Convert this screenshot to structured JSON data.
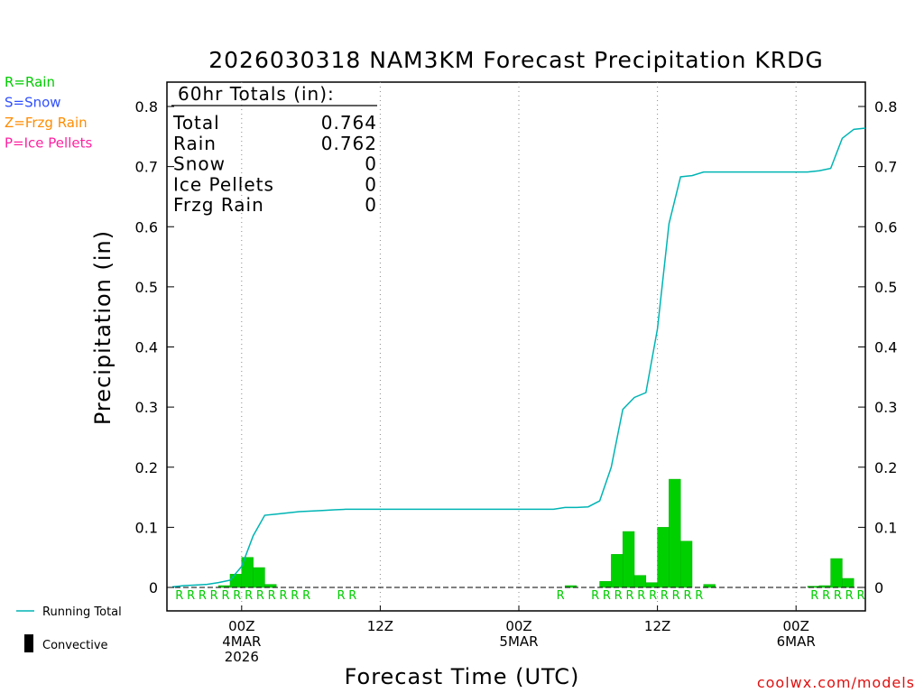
{
  "chart_data": {
    "type": "bar",
    "title": "2026030318 NAM3KM Forecast Precipitation KRDG",
    "xlabel": "Forecast Time (UTC)",
    "ylabel": "Precipitation (in)",
    "ylim": [
      -0.04,
      0.85
    ],
    "yticks": [
      "0",
      "0.1",
      "0.2",
      "0.3",
      "0.4",
      "0.5",
      "0.6",
      "0.7",
      "0.8"
    ],
    "xticks": [
      {
        "hour": 6,
        "lines": [
          "00Z",
          "4MAR",
          "2026"
        ]
      },
      {
        "hour": 18,
        "lines": [
          "12Z"
        ]
      },
      {
        "hour": 30,
        "lines": [
          "00Z",
          "5MAR"
        ]
      },
      {
        "hour": 42,
        "lines": [
          "12Z"
        ]
      },
      {
        "hour": 54,
        "lines": [
          "00Z",
          "6MAR"
        ]
      }
    ],
    "xlim": [
      0,
      60
    ],
    "grid": "vertical dotted at 00Z and 12Z",
    "legend_colors": {
      "rain": "#00cc00",
      "snow": "#3050ff",
      "frzg": "#ff8c00",
      "ice": "#ff20a0",
      "running": "#00b4b4"
    },
    "hourly_precip": [
      0,
      0,
      0,
      0,
      0.003,
      0.022,
      0.05,
      0.033,
      0.005,
      0,
      0,
      0,
      0,
      0,
      0,
      0,
      0,
      0,
      0,
      0,
      0,
      0,
      0,
      0,
      0,
      0,
      0,
      0,
      0,
      0,
      0,
      0,
      0,
      0,
      0.003,
      0,
      0,
      0.01,
      0.055,
      0.093,
      0.02,
      0.008,
      0.1,
      0.18,
      0.077,
      0,
      0.005,
      0,
      0,
      0,
      0,
      0,
      0,
      0,
      0,
      0.002,
      0.003,
      0.048,
      0.015,
      0
    ],
    "running_total": [
      0.001,
      0.003,
      0.004,
      0.005,
      0.008,
      0.012,
      0.035,
      0.086,
      0.12,
      0.122,
      0.124,
      0.126,
      0.127,
      0.128,
      0.129,
      0.13,
      0.13,
      0.13,
      0.13,
      0.13,
      0.13,
      0.13,
      0.13,
      0.13,
      0.13,
      0.13,
      0.13,
      0.13,
      0.13,
      0.13,
      0.13,
      0.13,
      0.13,
      0.13,
      0.133,
      0.133,
      0.134,
      0.144,
      0.2,
      0.296,
      0.316,
      0.324,
      0.43,
      0.605,
      0.683,
      0.685,
      0.691,
      0.691,
      0.691,
      0.691,
      0.691,
      0.691,
      0.691,
      0.691,
      0.691,
      0.691,
      0.693,
      0.697,
      0.747,
      0.762,
      0.764
    ],
    "ptype_markers": [
      {
        "hour": 1,
        "type": "R"
      },
      {
        "hour": 2,
        "type": "R"
      },
      {
        "hour": 3,
        "type": "R"
      },
      {
        "hour": 4,
        "type": "R"
      },
      {
        "hour": 5,
        "type": "R"
      },
      {
        "hour": 6,
        "type": "R"
      },
      {
        "hour": 7,
        "type": "R"
      },
      {
        "hour": 8,
        "type": "R"
      },
      {
        "hour": 9,
        "type": "R"
      },
      {
        "hour": 10,
        "type": "R"
      },
      {
        "hour": 11,
        "type": "R"
      },
      {
        "hour": 12,
        "type": "R"
      },
      {
        "hour": 15,
        "type": "R"
      },
      {
        "hour": 16,
        "type": "R"
      },
      {
        "hour": 34,
        "type": "R"
      },
      {
        "hour": 37,
        "type": "R"
      },
      {
        "hour": 38,
        "type": "R"
      },
      {
        "hour": 39,
        "type": "R"
      },
      {
        "hour": 40,
        "type": "R"
      },
      {
        "hour": 41,
        "type": "R"
      },
      {
        "hour": 42,
        "type": "R"
      },
      {
        "hour": 43,
        "type": "R"
      },
      {
        "hour": 44,
        "type": "R"
      },
      {
        "hour": 45,
        "type": "R"
      },
      {
        "hour": 46,
        "type": "R"
      },
      {
        "hour": 56,
        "type": "R"
      },
      {
        "hour": 57,
        "type": "R"
      },
      {
        "hour": 58,
        "type": "R"
      },
      {
        "hour": 59,
        "type": "R"
      },
      {
        "hour": 60,
        "type": "R"
      }
    ]
  },
  "legend_top": [
    {
      "text": "R=Rain",
      "color": "#00cc00"
    },
    {
      "text": "S=Snow",
      "color": "#3050ff"
    },
    {
      "text": "Z=Frzg Rain",
      "color": "#ff8c00"
    },
    {
      "text": "P=Ice Pellets",
      "color": "#ff20a0"
    }
  ],
  "totals": {
    "header": "60hr Totals (in):",
    "rows": [
      {
        "label": "Total",
        "value": "0.764"
      },
      {
        "label": "Rain",
        "value": "0.762"
      },
      {
        "label": "Snow",
        "value": "0"
      },
      {
        "label": "Ice Pellets",
        "value": "0"
      },
      {
        "label": "Frzg Rain",
        "value": "0"
      }
    ]
  },
  "legend_bottom": {
    "running_total": "Running Total",
    "convective": "Convective"
  },
  "credit": "coolwx.com/models"
}
